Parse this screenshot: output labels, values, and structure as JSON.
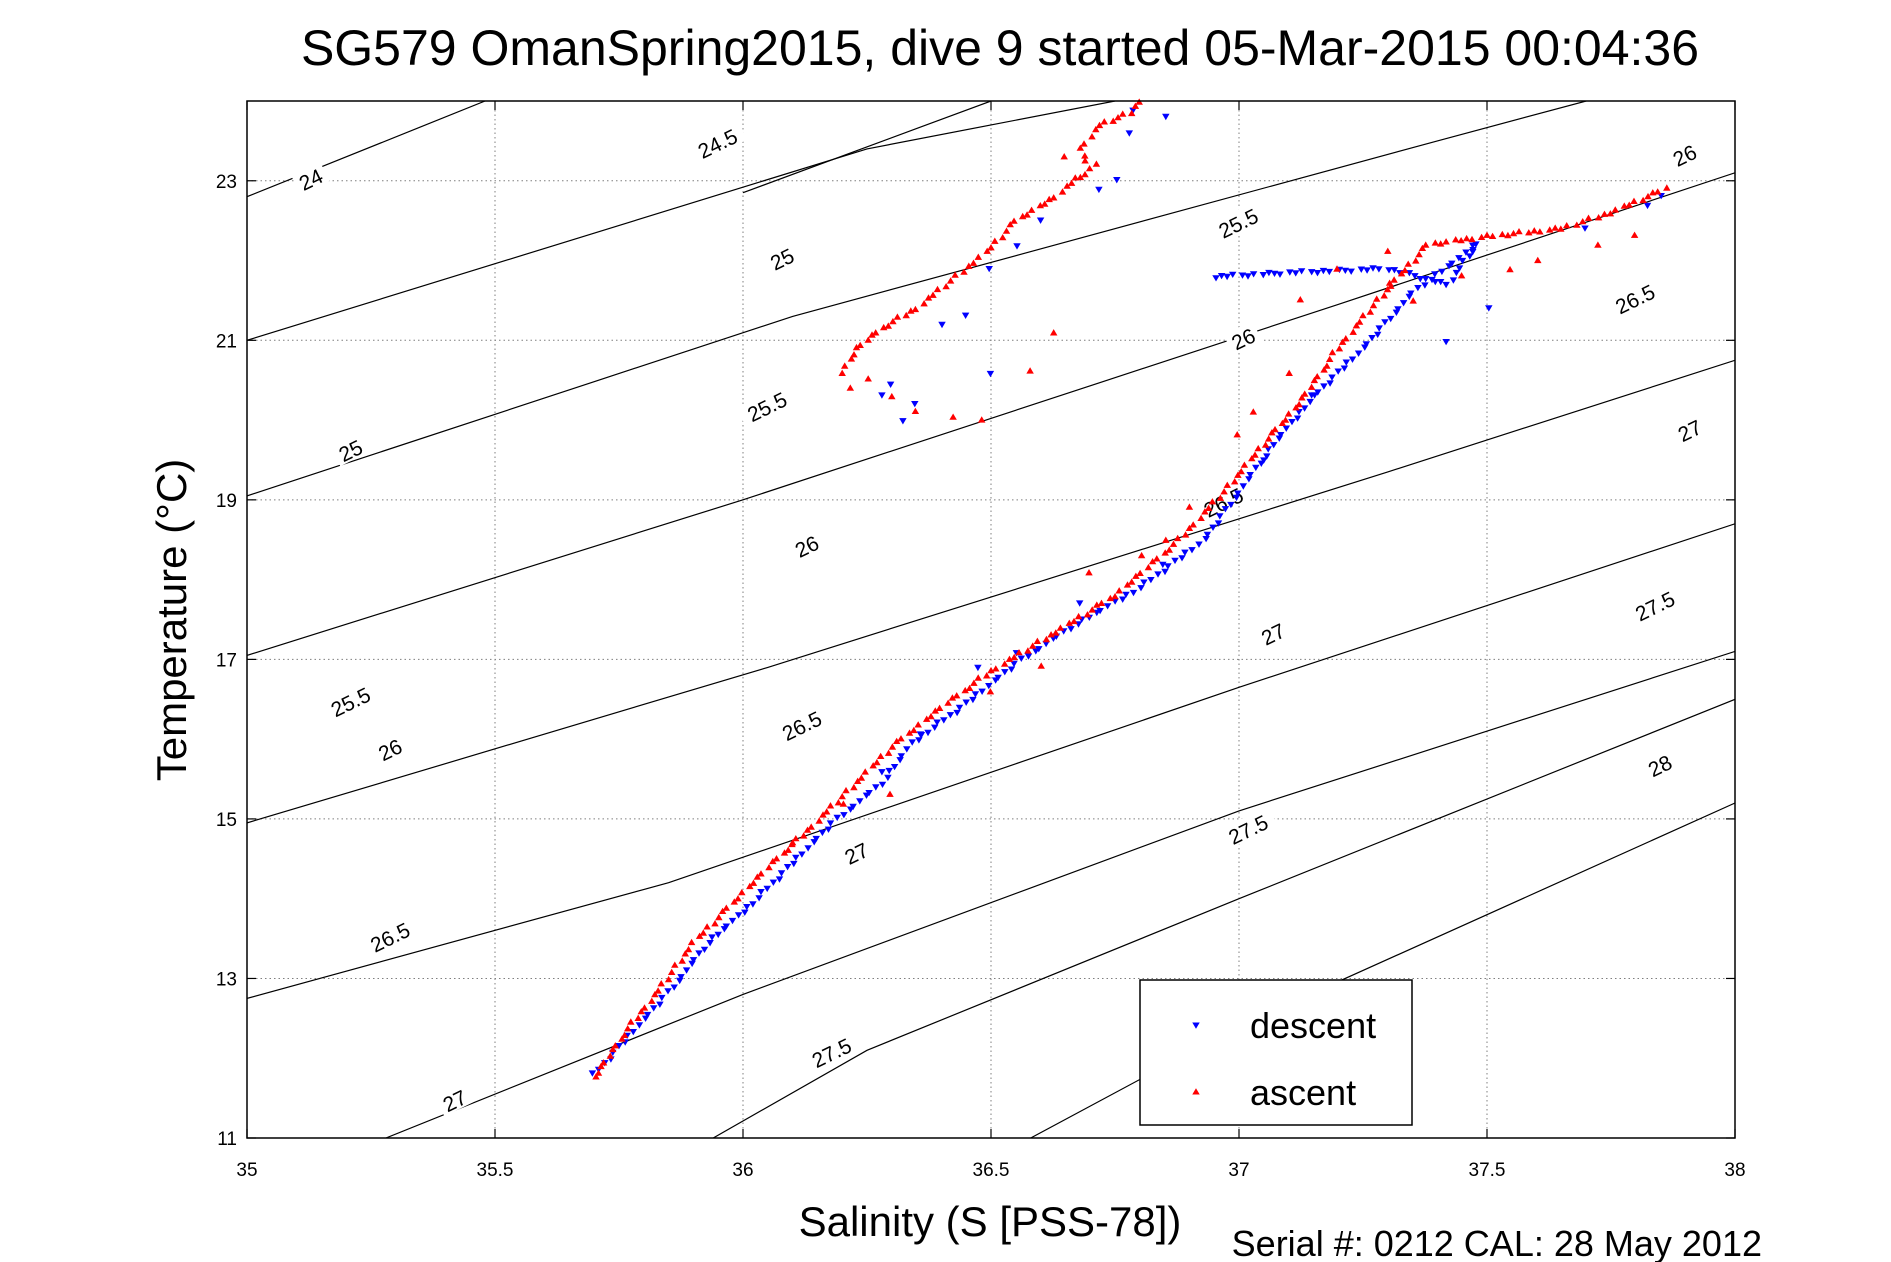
{
  "chart_data": {
    "type": "scatter",
    "title": "SG579 OmanSpring2015, dive 9 started 05-Mar-2015 00:04:36",
    "xlabel": "Salinity (S [PSS-78])",
    "ylabel": "Temperature (°C)",
    "xlim": [
      35,
      38
    ],
    "ylim": [
      11,
      24
    ],
    "xticks": [
      "35",
      "35.5",
      "36",
      "36.5",
      "37",
      "37.5",
      "38"
    ],
    "yticks": [
      "11",
      "13",
      "15",
      "17",
      "19",
      "21",
      "23"
    ],
    "grid": true,
    "legend_position": "bottom-right",
    "footer": "Serial #: 0212  CAL: 28 May 2012",
    "contours": [
      {
        "label": "24",
        "points": [
          [
            35.0,
            22.8
          ],
          [
            35.48,
            24.0
          ]
        ]
      },
      {
        "label": "24.5",
        "points": [
          [
            36.0,
            22.85
          ],
          [
            36.5,
            24.0
          ]
        ]
      },
      {
        "label": "25",
        "points": [
          [
            35.0,
            21.0
          ],
          [
            36.25,
            23.4
          ],
          [
            36.75,
            24.0
          ]
        ]
      },
      {
        "label": "25.5",
        "points": [
          [
            35.0,
            19.05
          ],
          [
            36.1,
            21.3
          ],
          [
            37.4,
            23.5
          ],
          [
            37.7,
            24.0
          ]
        ]
      },
      {
        "label": "26",
        "points": [
          [
            35.0,
            17.05
          ],
          [
            36.0,
            19.0
          ],
          [
            37.2,
            21.45
          ],
          [
            38.0,
            23.1
          ]
        ]
      },
      {
        "label": "26.5",
        "points": [
          [
            35.0,
            14.95
          ],
          [
            36.05,
            16.9
          ],
          [
            37.3,
            19.35
          ],
          [
            38.0,
            20.75
          ]
        ]
      },
      {
        "label": "27",
        "points": [
          [
            35.0,
            12.75
          ],
          [
            35.85,
            14.2
          ],
          [
            37.0,
            16.65
          ],
          [
            38.0,
            18.7
          ]
        ]
      },
      {
        "label": "27.5",
        "points": [
          [
            35.28,
            11.0
          ],
          [
            36.0,
            12.8
          ],
          [
            37.0,
            15.1
          ],
          [
            38.0,
            17.1
          ]
        ]
      },
      {
        "label": "27.5",
        "points": [
          [
            35.94,
            11.0
          ],
          [
            36.25,
            12.1
          ],
          [
            37.0,
            14.0
          ],
          [
            38.0,
            16.5
          ]
        ]
      },
      {
        "label": "28",
        "points": [
          [
            36.58,
            11.0
          ],
          [
            37.0,
            12.4
          ],
          [
            38.0,
            15.2
          ]
        ]
      }
    ],
    "contour_labels": [
      {
        "text": "24",
        "x": 35.13,
        "y": 23.0,
        "angle": -26
      },
      {
        "text": "24.5",
        "x": 35.95,
        "y": 23.45,
        "angle": -26
      },
      {
        "text": "25",
        "x": 35.21,
        "y": 19.6,
        "angle": -26
      },
      {
        "text": "25",
        "x": 36.08,
        "y": 22.0,
        "angle": -26
      },
      {
        "text": "25.5",
        "x": 35.21,
        "y": 16.45,
        "angle": -26
      },
      {
        "text": "25.5",
        "x": 36.05,
        "y": 20.15,
        "angle": -26
      },
      {
        "text": "25.5",
        "x": 37.0,
        "y": 22.45,
        "angle": -26
      },
      {
        "text": "26",
        "x": 35.29,
        "y": 15.85,
        "angle": -26
      },
      {
        "text": "26",
        "x": 36.13,
        "y": 18.4,
        "angle": -26
      },
      {
        "text": "26",
        "x": 37.01,
        "y": 21.0,
        "angle": -26
      },
      {
        "text": "26",
        "x": 37.9,
        "y": 23.3,
        "angle": -26
      },
      {
        "text": "26.5",
        "x": 35.29,
        "y": 13.5,
        "angle": -26
      },
      {
        "text": "26.5",
        "x": 36.12,
        "y": 16.15,
        "angle": -26
      },
      {
        "text": "26.5",
        "x": 36.97,
        "y": 18.95,
        "angle": -26
      },
      {
        "text": "26.5",
        "x": 37.8,
        "y": 21.5,
        "angle": -26
      },
      {
        "text": "27",
        "x": 35.42,
        "y": 11.45,
        "angle": -26
      },
      {
        "text": "27",
        "x": 36.23,
        "y": 14.55,
        "angle": -26
      },
      {
        "text": "27",
        "x": 37.07,
        "y": 17.3,
        "angle": -26
      },
      {
        "text": "27",
        "x": 37.91,
        "y": 19.85,
        "angle": -26
      },
      {
        "text": "27.5",
        "x": 36.18,
        "y": 12.05,
        "angle": -26
      },
      {
        "text": "27.5",
        "x": 37.02,
        "y": 14.85,
        "angle": -26
      },
      {
        "text": "27.5",
        "x": 37.84,
        "y": 17.65,
        "angle": -26
      },
      {
        "text": "28",
        "x": 37.85,
        "y": 15.65,
        "angle": -26
      }
    ],
    "series": [
      {
        "name": "descent",
        "color": "#0000ff",
        "marker": "triangle-down",
        "path": [
          [
            35.7,
            11.8
          ],
          [
            35.78,
            12.35
          ],
          [
            35.86,
            12.9
          ],
          [
            35.93,
            13.45
          ],
          [
            36.02,
            13.95
          ],
          [
            36.1,
            14.45
          ],
          [
            36.18,
            14.95
          ],
          [
            36.28,
            15.45
          ],
          [
            36.34,
            15.95
          ],
          [
            36.45,
            16.45
          ],
          [
            36.55,
            16.95
          ],
          [
            36.66,
            17.4
          ],
          [
            36.8,
            17.9
          ],
          [
            36.93,
            18.5
          ],
          [
            37.0,
            19.1
          ],
          [
            37.07,
            19.7
          ],
          [
            37.15,
            20.3
          ],
          [
            37.25,
            20.9
          ],
          [
            37.35,
            21.6
          ],
          [
            37.48,
            22.2
          ],
          [
            37.42,
            21.7
          ],
          [
            37.3,
            21.9
          ],
          [
            37.1,
            21.85
          ],
          [
            36.95,
            21.8
          ]
        ],
        "extra": [
          [
            36.3,
            20.45
          ],
          [
            36.28,
            20.3
          ],
          [
            36.32,
            20.0
          ],
          [
            36.35,
            20.2
          ],
          [
            36.5,
            20.6
          ],
          [
            36.4,
            21.2
          ],
          [
            36.75,
            23.0
          ],
          [
            36.72,
            22.9
          ],
          [
            36.6,
            22.5
          ],
          [
            36.55,
            22.2
          ],
          [
            36.5,
            21.9
          ],
          [
            36.45,
            21.3
          ],
          [
            37.47,
            22.2
          ],
          [
            37.5,
            21.4
          ],
          [
            37.42,
            21.0
          ],
          [
            37.05,
            19.5
          ],
          [
            37.15,
            20.3
          ],
          [
            36.85,
            18.2
          ],
          [
            36.68,
            17.7
          ],
          [
            36.55,
            17.1
          ],
          [
            36.47,
            16.9
          ],
          [
            36.36,
            16.05
          ],
          [
            36.28,
            15.6
          ],
          [
            36.85,
            23.8
          ],
          [
            36.79,
            23.9
          ],
          [
            36.78,
            23.6
          ],
          [
            37.85,
            22.8
          ],
          [
            37.82,
            22.7
          ],
          [
            37.7,
            22.4
          ]
        ]
      },
      {
        "name": "ascent",
        "color": "#ff0000",
        "marker": "triangle-up",
        "path": [
          [
            35.7,
            11.75
          ],
          [
            35.76,
            12.3
          ],
          [
            35.83,
            12.85
          ],
          [
            35.9,
            13.45
          ],
          [
            35.98,
            13.95
          ],
          [
            36.06,
            14.45
          ],
          [
            36.13,
            14.85
          ],
          [
            36.22,
            15.4
          ],
          [
            36.3,
            15.9
          ],
          [
            36.4,
            16.4
          ],
          [
            36.5,
            16.85
          ],
          [
            36.62,
            17.3
          ],
          [
            36.75,
            17.8
          ],
          [
            36.88,
            18.5
          ],
          [
            36.97,
            19.1
          ],
          [
            37.05,
            19.7
          ],
          [
            37.12,
            20.2
          ],
          [
            37.2,
            20.9
          ],
          [
            37.28,
            21.5
          ],
          [
            37.38,
            22.2
          ],
          [
            37.5,
            22.3
          ],
          [
            37.65,
            22.4
          ],
          [
            37.75,
            22.6
          ],
          [
            37.86,
            22.9
          ]
        ],
        "upper": [
          [
            36.2,
            20.6
          ],
          [
            36.23,
            20.9
          ],
          [
            36.28,
            21.15
          ],
          [
            36.35,
            21.4
          ],
          [
            36.43,
            21.8
          ],
          [
            36.49,
            22.1
          ],
          [
            36.55,
            22.5
          ],
          [
            36.63,
            22.8
          ],
          [
            36.7,
            23.15
          ],
          [
            36.68,
            23.4
          ],
          [
            36.72,
            23.7
          ],
          [
            36.78,
            23.85
          ],
          [
            36.8,
            24.0
          ]
        ],
        "extra": [
          [
            36.22,
            20.4
          ],
          [
            36.25,
            20.5
          ],
          [
            36.3,
            20.3
          ],
          [
            36.35,
            20.1
          ],
          [
            36.42,
            20.05
          ],
          [
            36.48,
            20.0
          ],
          [
            36.58,
            20.6
          ],
          [
            36.63,
            21.1
          ],
          [
            36.71,
            23.2
          ],
          [
            36.67,
            23.05
          ],
          [
            36.65,
            23.3
          ],
          [
            37.3,
            21.7
          ],
          [
            37.35,
            21.5
          ],
          [
            37.45,
            21.8
          ],
          [
            37.55,
            21.9
          ],
          [
            37.6,
            22.0
          ],
          [
            37.3,
            22.1
          ],
          [
            37.2,
            21.9
          ],
          [
            37.12,
            21.5
          ],
          [
            37.1,
            20.6
          ],
          [
            37.03,
            20.1
          ],
          [
            37.0,
            19.8
          ],
          [
            36.85,
            18.5
          ],
          [
            36.9,
            18.9
          ],
          [
            36.7,
            18.1
          ],
          [
            36.8,
            18.3
          ],
          [
            36.6,
            16.9
          ],
          [
            36.5,
            16.6
          ],
          [
            36.3,
            15.3
          ],
          [
            36.2,
            15.2
          ],
          [
            36.1,
            14.7
          ],
          [
            37.8,
            22.3
          ],
          [
            37.72,
            22.2
          ]
        ]
      }
    ]
  }
}
